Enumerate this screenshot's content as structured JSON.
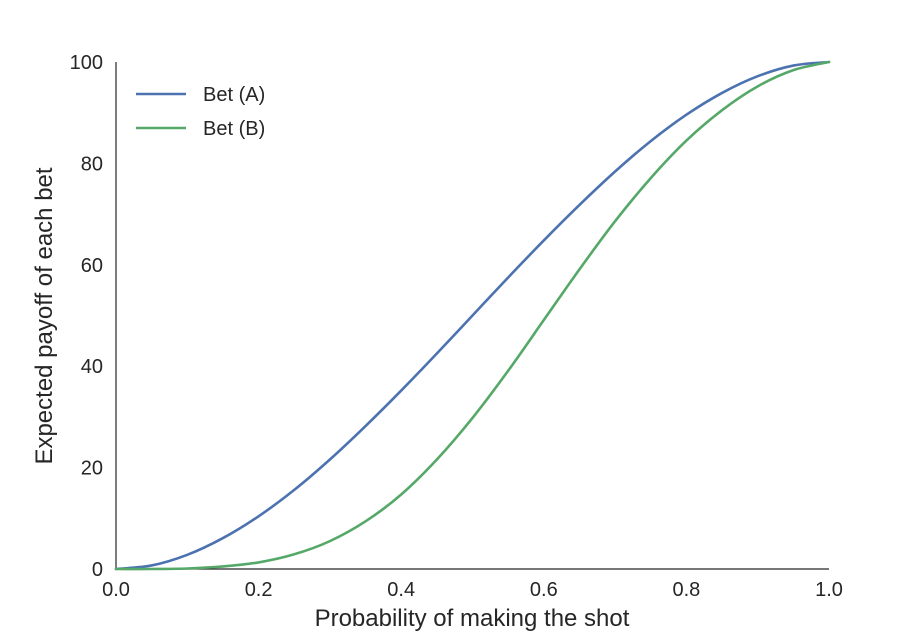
{
  "chart_data": {
    "type": "line",
    "title": "",
    "xlabel": "Probability of making the shot",
    "ylabel": "Expected payoff of each bet",
    "xlim": [
      0.0,
      1.0
    ],
    "ylim": [
      0,
      100
    ],
    "xticks": [
      "0.0",
      "0.2",
      "0.4",
      "0.6",
      "0.8",
      "1.0"
    ],
    "yticks": [
      "0",
      "20",
      "40",
      "60",
      "80",
      "100"
    ],
    "grid": false,
    "legend_position": "top-left",
    "x": [
      0.0,
      0.05,
      0.1,
      0.15,
      0.2,
      0.25,
      0.3,
      0.35,
      0.4,
      0.45,
      0.5,
      0.55,
      0.6,
      0.65,
      0.7,
      0.75,
      0.8,
      0.85,
      0.9,
      0.95,
      1.0
    ],
    "series": [
      {
        "name": "Bet (A)",
        "color": "#4c72b0",
        "values": [
          0.0,
          0.7,
          2.8,
          6.1,
          10.4,
          15.6,
          21.6,
          28.2,
          35.2,
          42.5,
          50.0,
          57.5,
          64.8,
          71.8,
          78.4,
          84.4,
          89.6,
          93.9,
          97.2,
          99.3,
          100.0
        ]
      },
      {
        "name": "Bet (B)",
        "color": "#55a868",
        "values": [
          0.0,
          0.0,
          0.1,
          0.5,
          1.3,
          2.9,
          5.5,
          9.4,
          14.7,
          21.6,
          29.8,
          39.1,
          49.1,
          59.1,
          68.6,
          77.1,
          84.5,
          90.5,
          95.2,
          98.4,
          100.0
        ]
      }
    ]
  }
}
